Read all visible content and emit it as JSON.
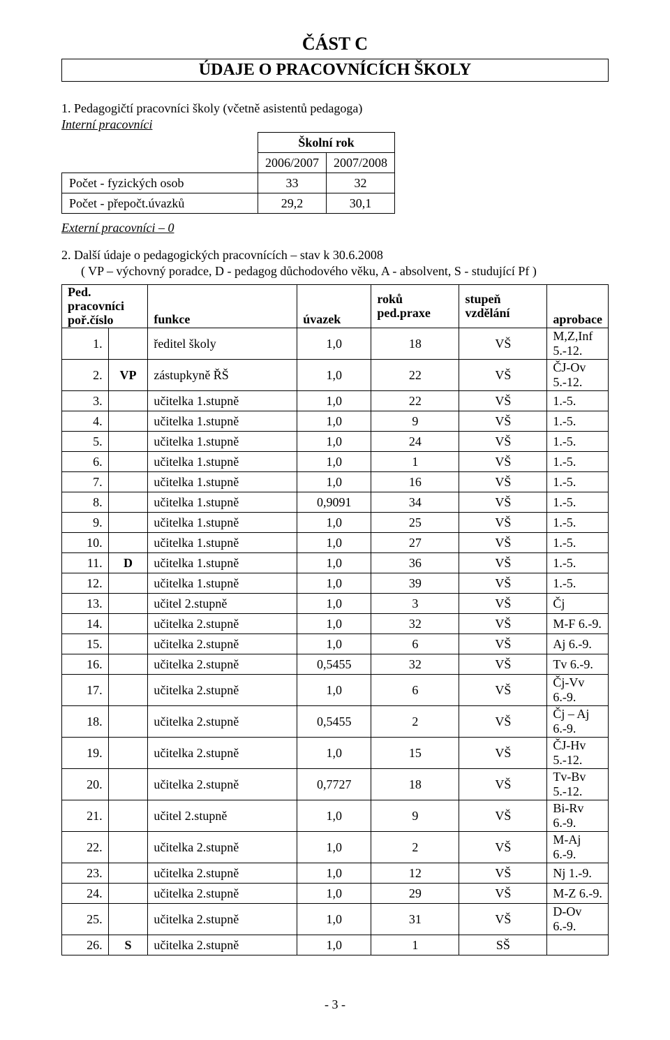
{
  "section": {
    "title": "ČÁST C",
    "subtitle": "ÚDAJE O PRACOVNÍCÍCH ŠKOLY"
  },
  "block1": {
    "heading": "1.  Pedagogičtí pracovníci školy (včetně asistentů pedagoga)",
    "internal_label": "Interní pracovníci",
    "small_table": {
      "header_year_label": "Školní rok",
      "year1": "2006/2007",
      "year2": "2007/2008",
      "rows": [
        {
          "label": "Počet - fyzických osob",
          "v1": "33",
          "v2": "32"
        },
        {
          "label": "Počet - přepočt.úvazků",
          "v1": "29,2",
          "v2": "30,1"
        }
      ]
    },
    "external_label": "Externí pracovníci – 0"
  },
  "block2": {
    "heading": "2.  Další údaje o pedagogických pracovnících – stav k 30.6.2008",
    "note": "( VP – výchovný poradce, D - pedagog důchodového věku, A - absolvent, S - studující Pf )",
    "columns": {
      "c1a": "Ped. pracovníci",
      "c1b": "poř.číslo",
      "c2": "funkce",
      "c3": "úvazek",
      "c4a": "roků",
      "c4b": "ped.praxe",
      "c5a": "stupeň",
      "c5b": "vzdělání",
      "c6": "aprobace"
    },
    "rows": [
      {
        "n": "1.",
        "m": "",
        "f": "ředitel školy",
        "u": "1,0",
        "r": "18",
        "s": "VŠ",
        "a": "M,Z,Inf  5.-12."
      },
      {
        "n": "2.",
        "m": "VP",
        "f": "zástupkyně ŘŠ",
        "u": "1,0",
        "r": "22",
        "s": "VŠ",
        "a": "ČJ-Ov  5.-12."
      },
      {
        "n": "3.",
        "m": "",
        "f": "učitelka 1.stupně",
        "u": "1,0",
        "r": "22",
        "s": "VŠ",
        "a": "1.-5."
      },
      {
        "n": "4.",
        "m": "",
        "f": "učitelka 1.stupně",
        "u": "1,0",
        "r": "9",
        "s": "VŠ",
        "a": "1.-5."
      },
      {
        "n": "5.",
        "m": "",
        "f": "učitelka 1.stupně",
        "u": "1,0",
        "r": "24",
        "s": "VŠ",
        "a": "1.-5."
      },
      {
        "n": "6.",
        "m": "",
        "f": "učitelka 1.stupně",
        "u": "1,0",
        "r": "1",
        "s": "VŠ",
        "a": "1.-5."
      },
      {
        "n": "7.",
        "m": "",
        "f": "učitelka 1.stupně",
        "u": "1,0",
        "r": "16",
        "s": "VŠ",
        "a": "1.-5."
      },
      {
        "n": "8.",
        "m": "",
        "f": "učitelka 1.stupně",
        "u": "0,9091",
        "r": "34",
        "s": "VŠ",
        "a": "1.-5."
      },
      {
        "n": "9.",
        "m": "",
        "f": "učitelka 1.stupně",
        "u": "1,0",
        "r": "25",
        "s": "VŠ",
        "a": "1.-5."
      },
      {
        "n": "10.",
        "m": "",
        "f": "učitelka 1.stupně",
        "u": "1,0",
        "r": "27",
        "s": "VŠ",
        "a": "1.-5."
      },
      {
        "n": "11.",
        "m": "D",
        "f": "učitelka 1.stupně",
        "u": "1,0",
        "r": "36",
        "s": "VŠ",
        "a": "1.-5."
      },
      {
        "n": "12.",
        "m": "",
        "f": "učitelka 1.stupně",
        "u": "1,0",
        "r": "39",
        "s": "VŠ",
        "a": "1.-5."
      },
      {
        "n": "13.",
        "m": "",
        "f": "učitel 2.stupně",
        "u": "1,0",
        "r": "3",
        "s": "VŠ",
        "a": "Čj"
      },
      {
        "n": "14.",
        "m": "",
        "f": "učitelka 2.stupně",
        "u": "1,0",
        "r": "32",
        "s": "VŠ",
        "a": "M-F 6.-9."
      },
      {
        "n": "15.",
        "m": "",
        "f": "učitelka 2.stupně",
        "u": "1,0",
        "r": "6",
        "s": "VŠ",
        "a": "Aj 6.-9."
      },
      {
        "n": "16.",
        "m": "",
        "f": "učitelka 2.stupně",
        "u": "0,5455",
        "r": "32",
        "s": "VŠ",
        "a": "Tv 6.-9."
      },
      {
        "n": "17.",
        "m": "",
        "f": "učitelka 2.stupně",
        "u": "1,0",
        "r": "6",
        "s": "VŠ",
        "a": "Čj-Vv 6.-9."
      },
      {
        "n": "18.",
        "m": "",
        "f": "učitelka 2.stupně",
        "u": "0,5455",
        "r": "2",
        "s": "VŠ",
        "a": "Čj – Aj 6.-9."
      },
      {
        "n": "19.",
        "m": "",
        "f": "učitelka 2.stupně",
        "u": "1,0",
        "r": "15",
        "s": "VŠ",
        "a": "ČJ-Hv 5.-12."
      },
      {
        "n": "20.",
        "m": "",
        "f": "učitelka 2.stupně",
        "u": "0,7727",
        "r": "18",
        "s": "VŠ",
        "a": "Tv-Bv 5.-12."
      },
      {
        "n": "21.",
        "m": "",
        "f": "učitel 2.stupně",
        "u": "1,0",
        "r": "9",
        "s": "VŠ",
        "a": "Bi-Rv 6.-9."
      },
      {
        "n": "22.",
        "m": "",
        "f": "učitelka 2.stupně",
        "u": "1,0",
        "r": "2",
        "s": "VŠ",
        "a": "M-Aj 6.-9."
      },
      {
        "n": "23.",
        "m": "",
        "f": "učitelka 2.stupně",
        "u": "1,0",
        "r": "12",
        "s": "VŠ",
        "a": "Nj 1.-9."
      },
      {
        "n": "24.",
        "m": "",
        "f": "učitelka 2.stupně",
        "u": "1,0",
        "r": "29",
        "s": "VŠ",
        "a": "M-Z  6.-9."
      },
      {
        "n": "25.",
        "m": "",
        "f": "učitelka 2.stupně",
        "u": "1,0",
        "r": "31",
        "s": "VŠ",
        "a": "D-Ov  6.-9."
      },
      {
        "n": "26.",
        "m": "S",
        "f": "učitelka 2.stupně",
        "u": "1,0",
        "r": "1",
        "s": "SŠ",
        "a": ""
      }
    ]
  },
  "footer": "- 3 -"
}
